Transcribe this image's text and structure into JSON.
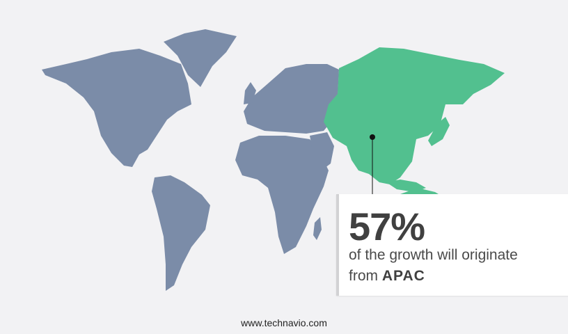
{
  "colors": {
    "background": "#f2f2f4",
    "land": "#7b8ca8",
    "highlight": "#52c08f",
    "marker": "#111111"
  },
  "map": {
    "highlighted_region": "APAC"
  },
  "callout": {
    "value": "57%",
    "text": "of the growth will originate",
    "prefix": "from",
    "region": "APAC"
  },
  "footer": {
    "url": "www.technavio.com"
  }
}
